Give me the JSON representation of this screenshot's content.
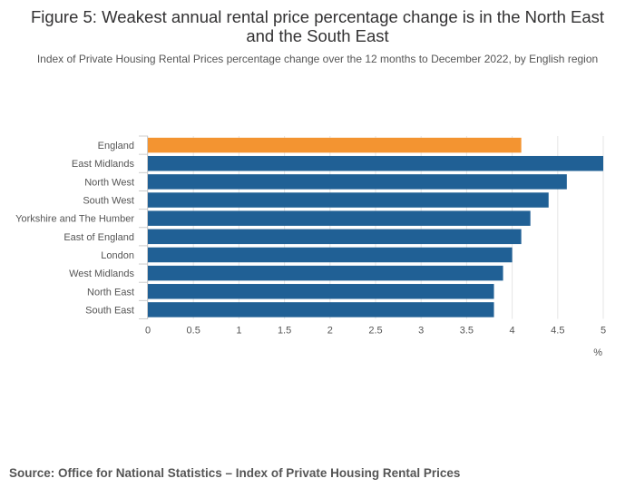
{
  "title": "Figure 5: Weakest annual rental price percentage change is in the North East and the South East",
  "subtitle": "Index of Private Housing Rental Prices percentage change over the 12 months to December 2022, by English region",
  "source": "Source: Office for National Statistics – Index of Private Housing Rental Prices",
  "colors": {
    "highlight": "#F39431",
    "primary": "#206095",
    "grid": "#e5e5e5",
    "axis": "#cccccc"
  },
  "chart_data": {
    "type": "bar",
    "orientation": "horizontal",
    "categories": [
      "England",
      "East Midlands",
      "North West",
      "South West",
      "Yorkshire and The Humber",
      "East of England",
      "London",
      "West Midlands",
      "North East",
      "South East"
    ],
    "values": [
      4.1,
      5.0,
      4.6,
      4.4,
      4.2,
      4.1,
      4.0,
      3.9,
      3.8,
      3.8
    ],
    "highlight": [
      "England"
    ],
    "xlim": [
      0,
      5
    ],
    "xticks": [
      0,
      0.5,
      1,
      1.5,
      2,
      2.5,
      3,
      3.5,
      4,
      4.5,
      5
    ],
    "xlabel": "%",
    "ylabel": "",
    "grid": true
  }
}
